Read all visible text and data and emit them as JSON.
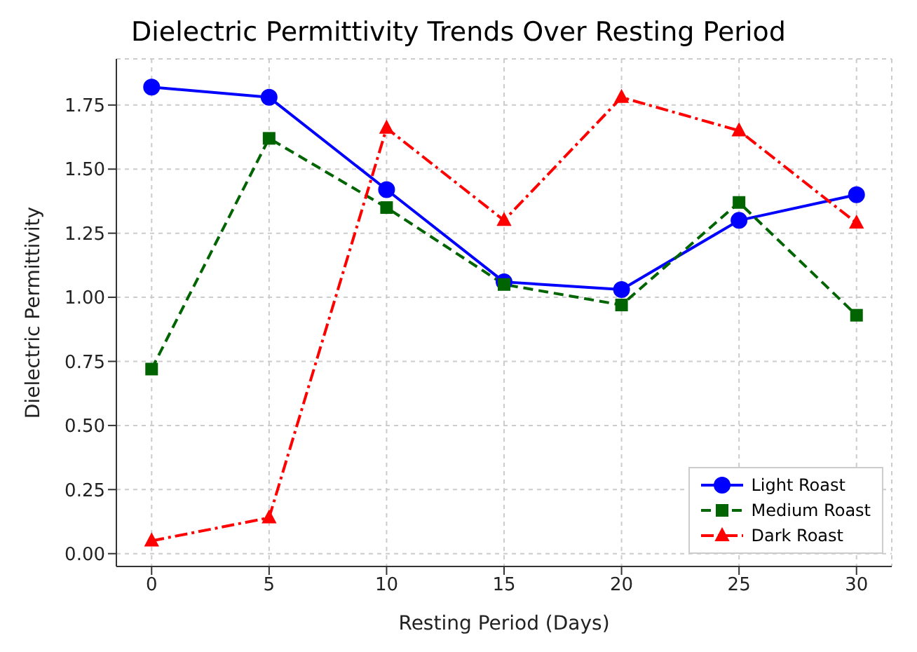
{
  "chart_data": {
    "type": "line",
    "title": "Dielectric Permittivity Trends Over Resting Period",
    "xlabel": "Resting Period (Days)",
    "ylabel": "Dielectric Permittivity",
    "x": [
      0,
      5,
      10,
      15,
      20,
      25,
      30
    ],
    "series": [
      {
        "name": "Light Roast",
        "color": "#0000ff",
        "marker": "circle",
        "line_style": "solid",
        "values": [
          1.82,
          1.78,
          1.42,
          1.06,
          1.03,
          1.3,
          1.4
        ]
      },
      {
        "name": "Medium Roast",
        "color": "#006400",
        "marker": "square",
        "line_style": "dashed",
        "values": [
          0.72,
          1.62,
          1.35,
          1.05,
          0.97,
          1.37,
          0.93
        ]
      },
      {
        "name": "Dark Roast",
        "color": "#ff0000",
        "marker": "triangle",
        "line_style": "dashdot",
        "values": [
          0.05,
          0.14,
          1.66,
          1.3,
          1.78,
          1.65,
          1.29
        ]
      }
    ],
    "xlim": [
      -1.5,
      31.5
    ],
    "xticks": [
      0,
      5,
      10,
      15,
      20,
      25,
      30
    ],
    "ylim": [
      -0.05,
      1.93
    ],
    "yticks": [
      {
        "value": 0,
        "label": "0.00"
      },
      0.25,
      {
        "value": 0.5,
        "label": "0.50"
      },
      0.75,
      {
        "value": 1,
        "label": "1.00"
      },
      1.25,
      {
        "value": 1.5,
        "label": "1.50"
      },
      1.75
    ],
    "grid": true,
    "legend": "bottom right"
  }
}
